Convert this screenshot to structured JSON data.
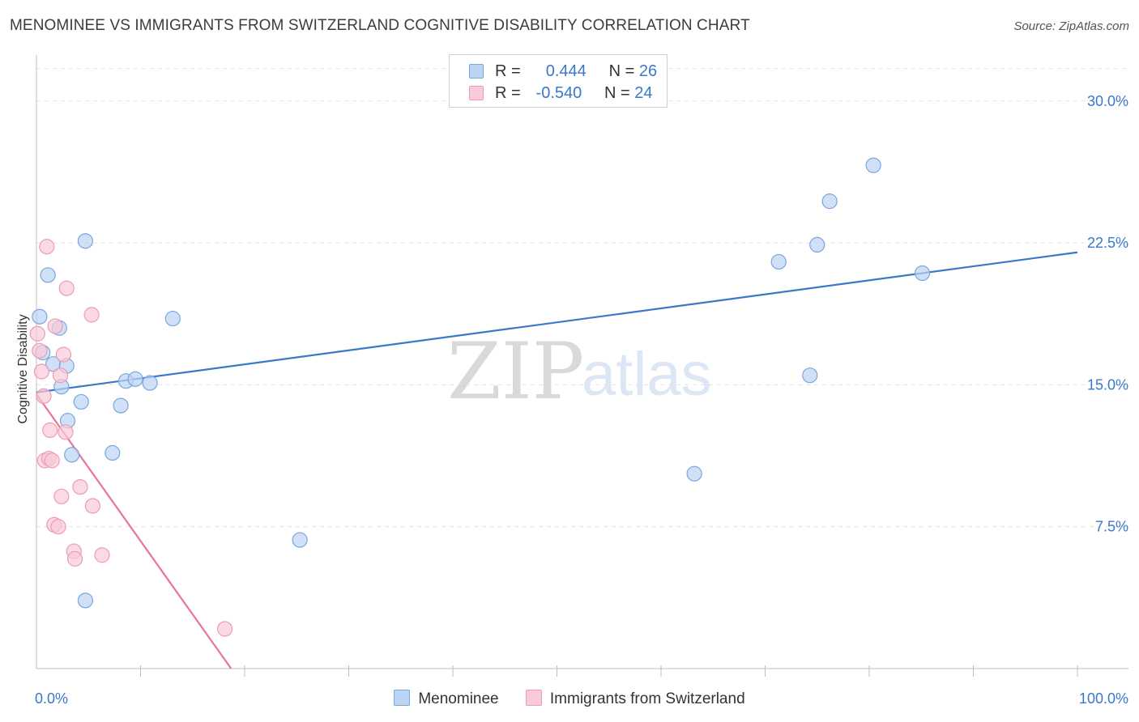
{
  "title": "MENOMINEE VS IMMIGRANTS FROM SWITZERLAND COGNITIVE DISABILITY CORRELATION CHART",
  "source": "Source: ZipAtlas.com",
  "watermark": {
    "zip": "ZIP",
    "atlas": "atlas"
  },
  "legend_top": {
    "rows": [
      {
        "r_label": "R =",
        "r_value": "0.444",
        "n_label": "N =",
        "n_value": "26"
      },
      {
        "r_label": "R =",
        "r_value": "-0.540",
        "n_label": "N =",
        "n_value": "24"
      }
    ]
  },
  "legend_bottom": [
    "Menominee",
    "Immigrants from Switzerland"
  ],
  "chart_data": {
    "type": "scatter",
    "title": "MENOMINEE VS IMMIGRANTS FROM SWITZERLAND COGNITIVE DISABILITY CORRELATION CHART",
    "xlabel": "",
    "ylabel": "Cognitive Disability",
    "xlim": [
      0,
      100
    ],
    "ylim": [
      0,
      32
    ],
    "x_tick_labels": [
      "0.0%",
      "100.0%"
    ],
    "y_ticks": [
      7.5,
      15.0,
      22.5,
      30.0
    ],
    "y_tick_labels": [
      "7.5%",
      "15.0%",
      "22.5%",
      "30.0%"
    ],
    "grid": true,
    "colors": {
      "blue": "#3a78c9",
      "blue_fill": "#bcd4f4",
      "pink": "#e8739d",
      "pink_fill": "#f9cad8"
    },
    "series": [
      {
        "name": "Menominee",
        "color": "#3a78c9",
        "points": [
          [
            0.3,
            18.6
          ],
          [
            0.6,
            16.7
          ],
          [
            1.1,
            20.8
          ],
          [
            1.6,
            16.1
          ],
          [
            2.2,
            18.0
          ],
          [
            2.4,
            14.9
          ],
          [
            2.9,
            16.0
          ],
          [
            3.0,
            13.1
          ],
          [
            3.4,
            11.3
          ],
          [
            4.3,
            14.1
          ],
          [
            4.7,
            22.6
          ],
          [
            4.7,
            3.6
          ],
          [
            7.3,
            11.4
          ],
          [
            8.1,
            13.9
          ],
          [
            8.6,
            15.2
          ],
          [
            9.5,
            15.3
          ],
          [
            10.9,
            15.1
          ],
          [
            13.1,
            18.5
          ],
          [
            25.3,
            6.8
          ],
          [
            63.2,
            10.3
          ],
          [
            71.3,
            21.5
          ],
          [
            74.3,
            15.5
          ],
          [
            75.0,
            22.4
          ],
          [
            76.2,
            24.7
          ],
          [
            80.4,
            26.6
          ],
          [
            85.1,
            20.9
          ]
        ],
        "trend": {
          "x": [
            0,
            100
          ],
          "y": [
            14.6,
            22.0
          ]
        }
      },
      {
        "name": "Immigrants from Switzerland",
        "color": "#e8739d",
        "points": [
          [
            0.1,
            17.7
          ],
          [
            0.3,
            16.8
          ],
          [
            0.5,
            15.7
          ],
          [
            0.7,
            14.4
          ],
          [
            0.8,
            11.0
          ],
          [
            1.0,
            22.3
          ],
          [
            1.2,
            11.1
          ],
          [
            1.3,
            12.6
          ],
          [
            1.5,
            11.0
          ],
          [
            1.7,
            7.6
          ],
          [
            1.8,
            18.1
          ],
          [
            2.1,
            7.5
          ],
          [
            2.3,
            15.5
          ],
          [
            2.4,
            9.1
          ],
          [
            2.6,
            16.6
          ],
          [
            2.8,
            12.5
          ],
          [
            2.9,
            20.1
          ],
          [
            3.6,
            6.2
          ],
          [
            3.7,
            5.8
          ],
          [
            4.2,
            9.6
          ],
          [
            5.4,
            8.6
          ],
          [
            5.3,
            18.7
          ],
          [
            6.3,
            6.0
          ],
          [
            18.1,
            2.1
          ]
        ],
        "trend": {
          "x": [
            0,
            18.7
          ],
          "y": [
            14.5,
            0
          ]
        }
      }
    ]
  }
}
